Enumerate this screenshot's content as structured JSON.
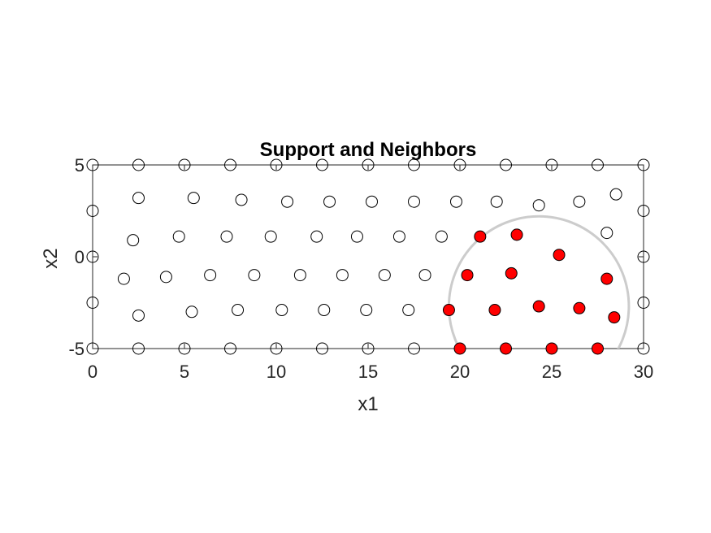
{
  "chart_data": {
    "type": "scatter",
    "title": "Support and Neighbors",
    "xlabel": "x1",
    "ylabel": "x2",
    "xlim": [
      0,
      30
    ],
    "ylim": [
      -5,
      5
    ],
    "xticks": [
      0,
      5,
      10,
      15,
      20,
      25,
      30
    ],
    "yticks": [
      -5,
      0,
      5
    ],
    "grid": false,
    "legend": "none",
    "colors": {
      "support_edge": "#000000",
      "support_fill": "none",
      "neighbor_fill": "#ff0000",
      "neighbor_edge": "#000000",
      "circle": "#cccccc",
      "axes": "#262626"
    },
    "series": [
      {
        "marker": "open-circle",
        "points": [
          [
            0,
            5
          ],
          [
            2.5,
            5
          ],
          [
            5,
            5
          ],
          [
            7.5,
            5
          ],
          [
            10,
            5
          ],
          [
            12.5,
            5
          ],
          [
            15,
            5
          ],
          [
            17.5,
            5
          ],
          [
            20,
            5
          ],
          [
            22.5,
            5
          ],
          [
            25,
            5
          ],
          [
            27.5,
            5
          ],
          [
            30,
            5
          ],
          [
            0,
            2.5
          ],
          [
            30,
            2.5
          ],
          [
            0,
            0
          ],
          [
            30,
            0
          ],
          [
            0,
            -2.5
          ],
          [
            30,
            -2.5
          ],
          [
            0,
            -5
          ],
          [
            2.5,
            -5
          ],
          [
            5,
            -5
          ],
          [
            7.5,
            -5
          ],
          [
            10,
            -5
          ],
          [
            12.5,
            -5
          ],
          [
            15,
            -5
          ],
          [
            17.5,
            -5
          ],
          [
            30,
            -5
          ],
          [
            2.5,
            3.2
          ],
          [
            5.5,
            3.2
          ],
          [
            8.1,
            3.1
          ],
          [
            10.6,
            3.0
          ],
          [
            12.9,
            3.0
          ],
          [
            15.2,
            3.0
          ],
          [
            17.5,
            3.0
          ],
          [
            19.8,
            3.0
          ],
          [
            22,
            3.0
          ],
          [
            24.3,
            2.8
          ],
          [
            26.5,
            3.0
          ],
          [
            28.5,
            3.4
          ],
          [
            2.2,
            0.9
          ],
          [
            4.7,
            1.1
          ],
          [
            7.3,
            1.1
          ],
          [
            9.7,
            1.1
          ],
          [
            12.2,
            1.1
          ],
          [
            14.4,
            1.1
          ],
          [
            16.7,
            1.1
          ],
          [
            19,
            1.1
          ],
          [
            28,
            1.3
          ],
          [
            1.7,
            -1.2
          ],
          [
            4,
            -1.1
          ],
          [
            6.4,
            -1.0
          ],
          [
            8.8,
            -1.0
          ],
          [
            11.3,
            -1.0
          ],
          [
            13.6,
            -1.0
          ],
          [
            15.9,
            -1.0
          ],
          [
            18.1,
            -1.0
          ],
          [
            2.5,
            -3.2
          ],
          [
            5.4,
            -3.0
          ],
          [
            7.9,
            -2.9
          ],
          [
            10.3,
            -2.9
          ],
          [
            12.6,
            -2.9
          ],
          [
            14.9,
            -2.9
          ],
          [
            17.2,
            -2.9
          ]
        ]
      },
      {
        "marker": "filled-circle",
        "points": [
          [
            21.1,
            1.1
          ],
          [
            23.1,
            1.2
          ],
          [
            25.4,
            0.1
          ],
          [
            20.4,
            -1.0
          ],
          [
            22.8,
            -0.9
          ],
          [
            28,
            -1.2
          ],
          [
            19.4,
            -2.9
          ],
          [
            21.9,
            -2.9
          ],
          [
            24.3,
            -2.7
          ],
          [
            26.5,
            -2.8
          ],
          [
            28.4,
            -3.3
          ],
          [
            20,
            -5
          ],
          [
            22.5,
            -5
          ],
          [
            25,
            -5
          ],
          [
            27.5,
            -5
          ]
        ]
      }
    ],
    "circle": {
      "center": [
        24.3,
        -2.7
      ],
      "radius": 4.9
    }
  }
}
